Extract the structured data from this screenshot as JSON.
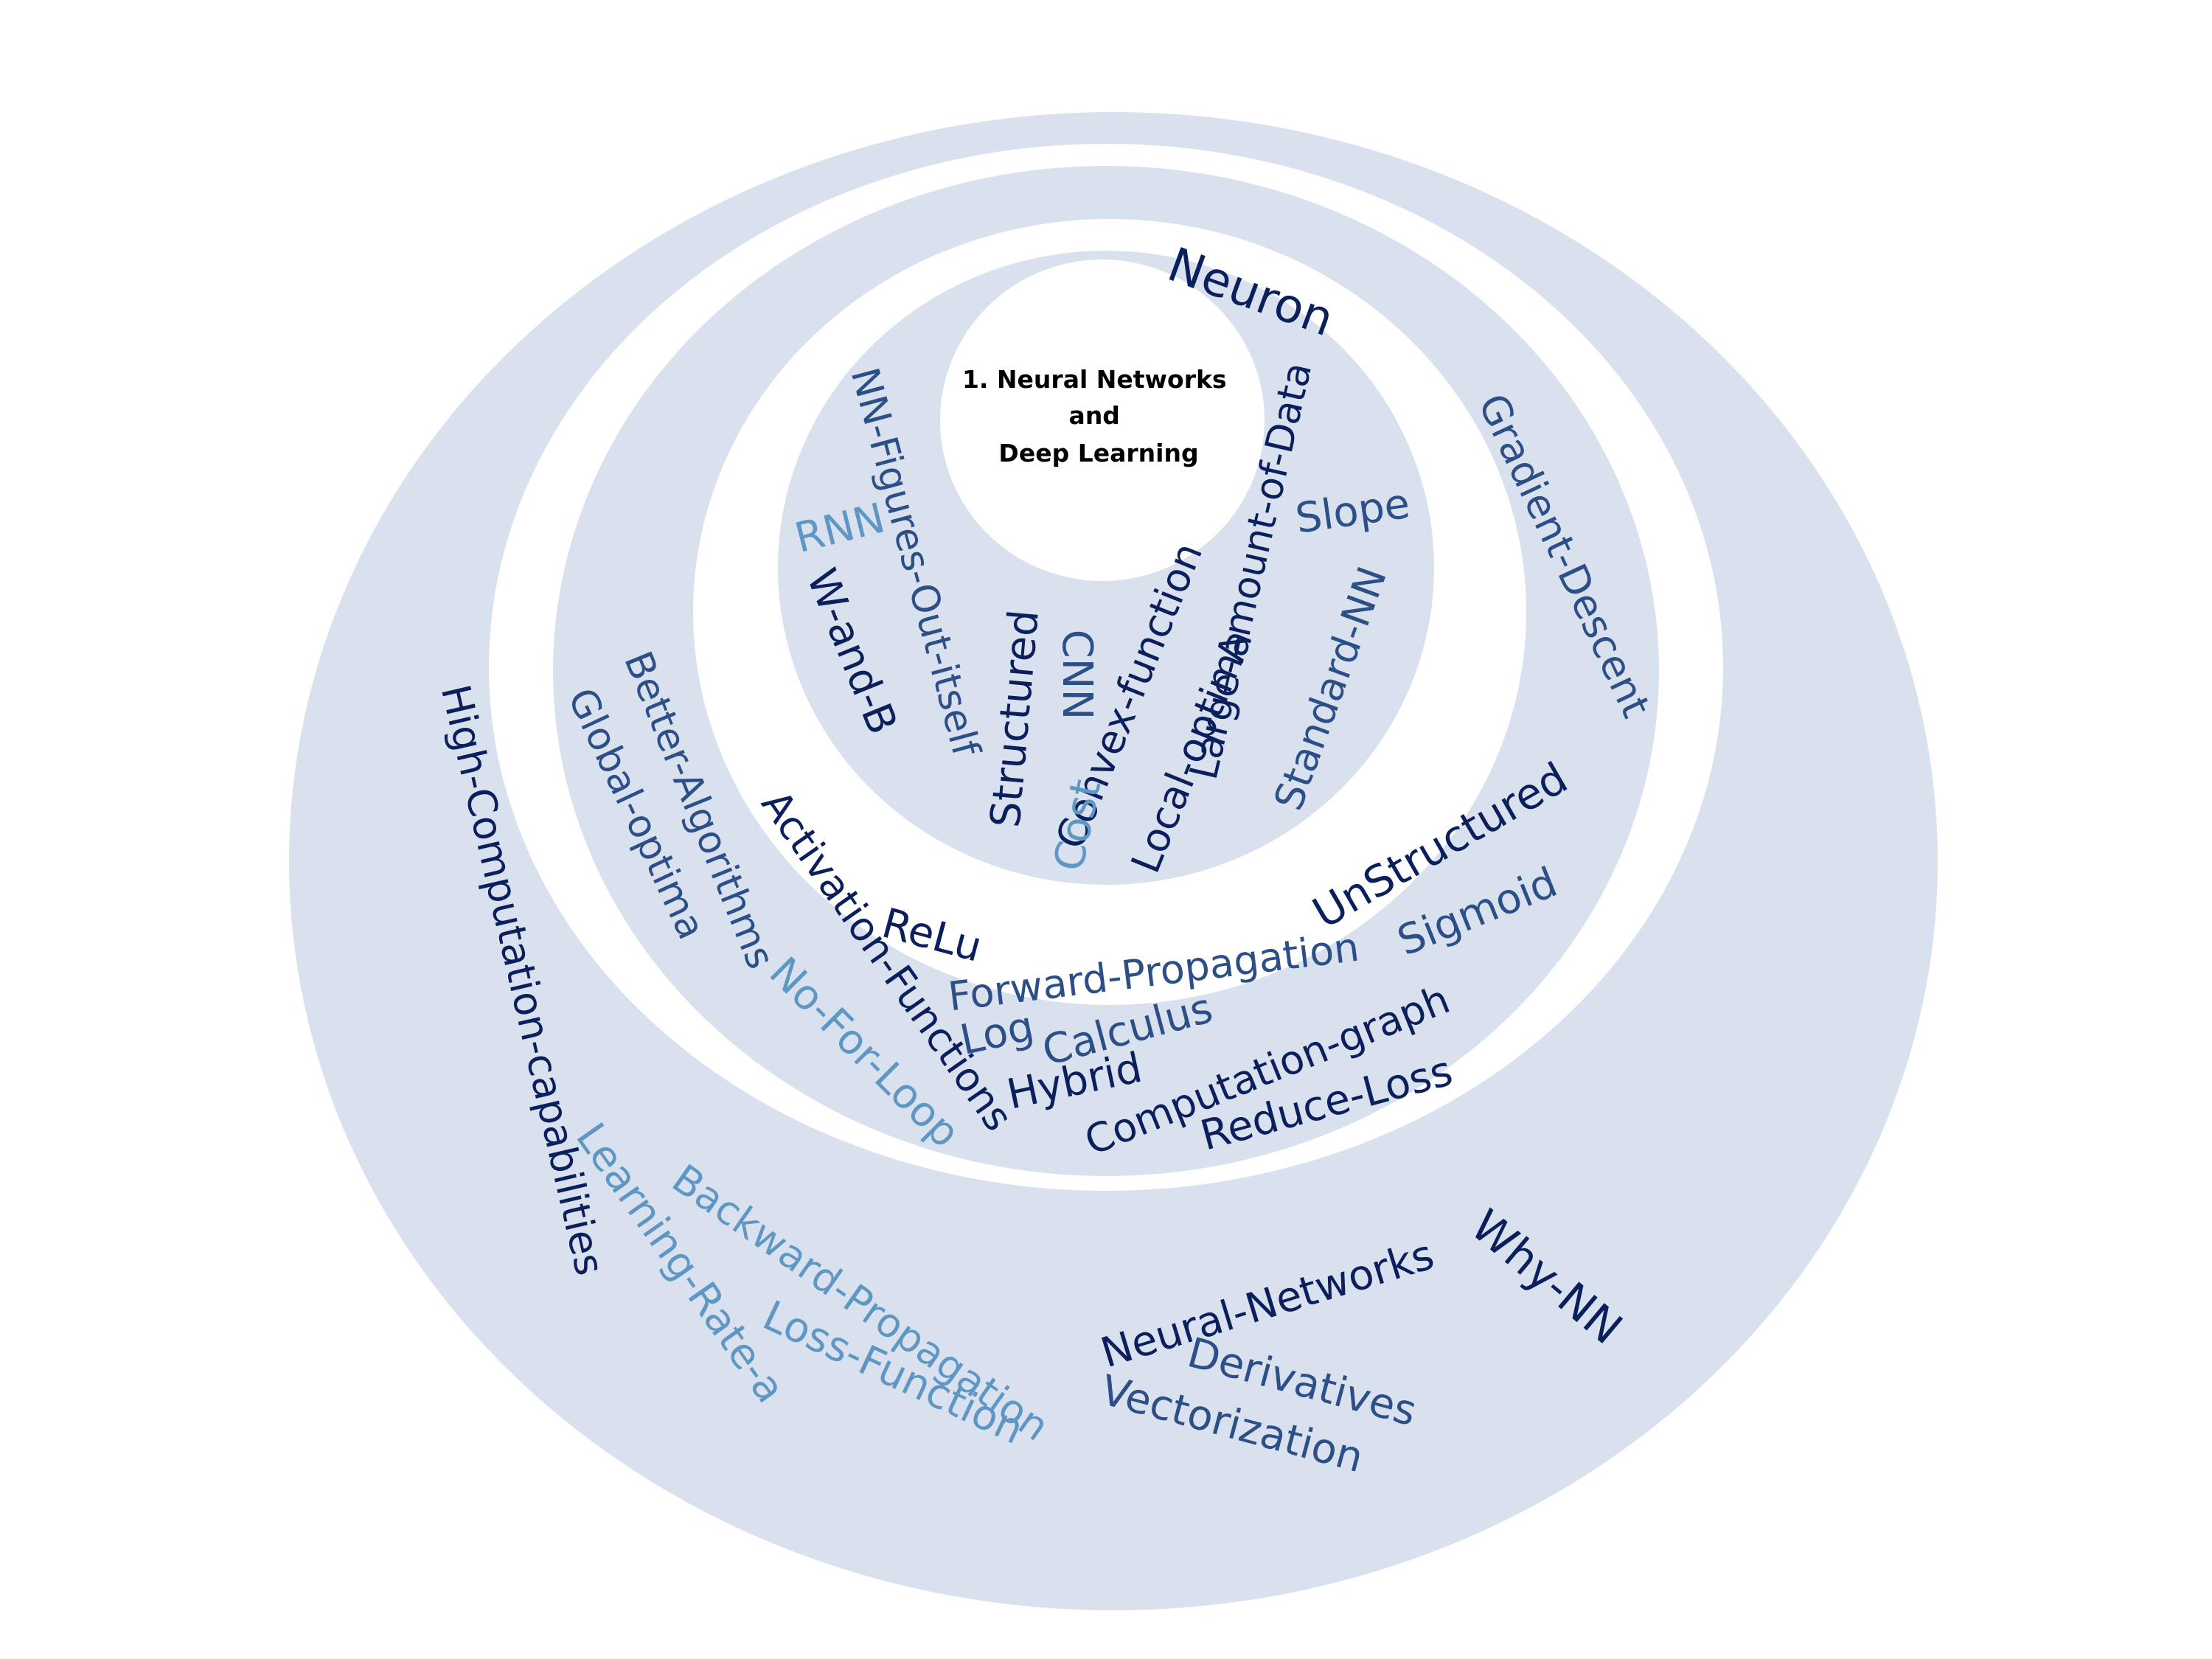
{
  "center": {
    "lines": [
      "1. Neural Networks",
      "and",
      "Deep Learning"
    ]
  },
  "colors": {
    "ring": "#d9e1ef",
    "background": "#ffffff",
    "dark": "#0a1f5c",
    "mid": "#2b4f86",
    "light": "#5f97c4"
  },
  "words": [
    {
      "text": "Neuron",
      "color": "dark"
    },
    {
      "text": "NN-Figures-Out-itself",
      "color": "mid"
    },
    {
      "text": "Large-Amount-of-Data",
      "color": "dark"
    },
    {
      "text": "Gradient-Descent",
      "color": "mid"
    },
    {
      "text": "Slope",
      "color": "mid"
    },
    {
      "text": "RNN",
      "color": "light"
    },
    {
      "text": "W-and-B",
      "color": "dark"
    },
    {
      "text": "Structured",
      "color": "dark"
    },
    {
      "text": "CNN",
      "color": "mid"
    },
    {
      "text": "Convex-function",
      "color": "dark"
    },
    {
      "text": "Cost",
      "color": "light"
    },
    {
      "text": "Local-optima",
      "color": "dark"
    },
    {
      "text": "Standard-NN",
      "color": "mid"
    },
    {
      "text": "Better-Algorithms",
      "color": "mid"
    },
    {
      "text": "Global-optima",
      "color": "mid"
    },
    {
      "text": "High-Computation-capabilities",
      "color": "dark"
    },
    {
      "text": "Activation-Functions",
      "color": "dark"
    },
    {
      "text": "UnStructured",
      "color": "dark"
    },
    {
      "text": "Sigmoid",
      "color": "mid"
    },
    {
      "text": "ReLu",
      "color": "dark"
    },
    {
      "text": "Forward-Propagation",
      "color": "mid"
    },
    {
      "text": "No-For-Loop",
      "color": "light"
    },
    {
      "text": "Computation-graph",
      "color": "dark"
    },
    {
      "text": "Log",
      "color": "mid"
    },
    {
      "text": "Calculus",
      "color": "mid"
    },
    {
      "text": "Hybrid",
      "color": "dark"
    },
    {
      "text": "Reduce-Loss",
      "color": "dark"
    },
    {
      "text": "Learning-Rate-a",
      "color": "light"
    },
    {
      "text": "Backward-Propagation",
      "color": "light"
    },
    {
      "text": "Loss-Function",
      "color": "light"
    },
    {
      "text": "Neural-Networks",
      "color": "dark"
    },
    {
      "text": "Why-NN",
      "color": "dark"
    },
    {
      "text": "Derivatives",
      "color": "mid"
    },
    {
      "text": "Vectorization",
      "color": "mid"
    }
  ]
}
